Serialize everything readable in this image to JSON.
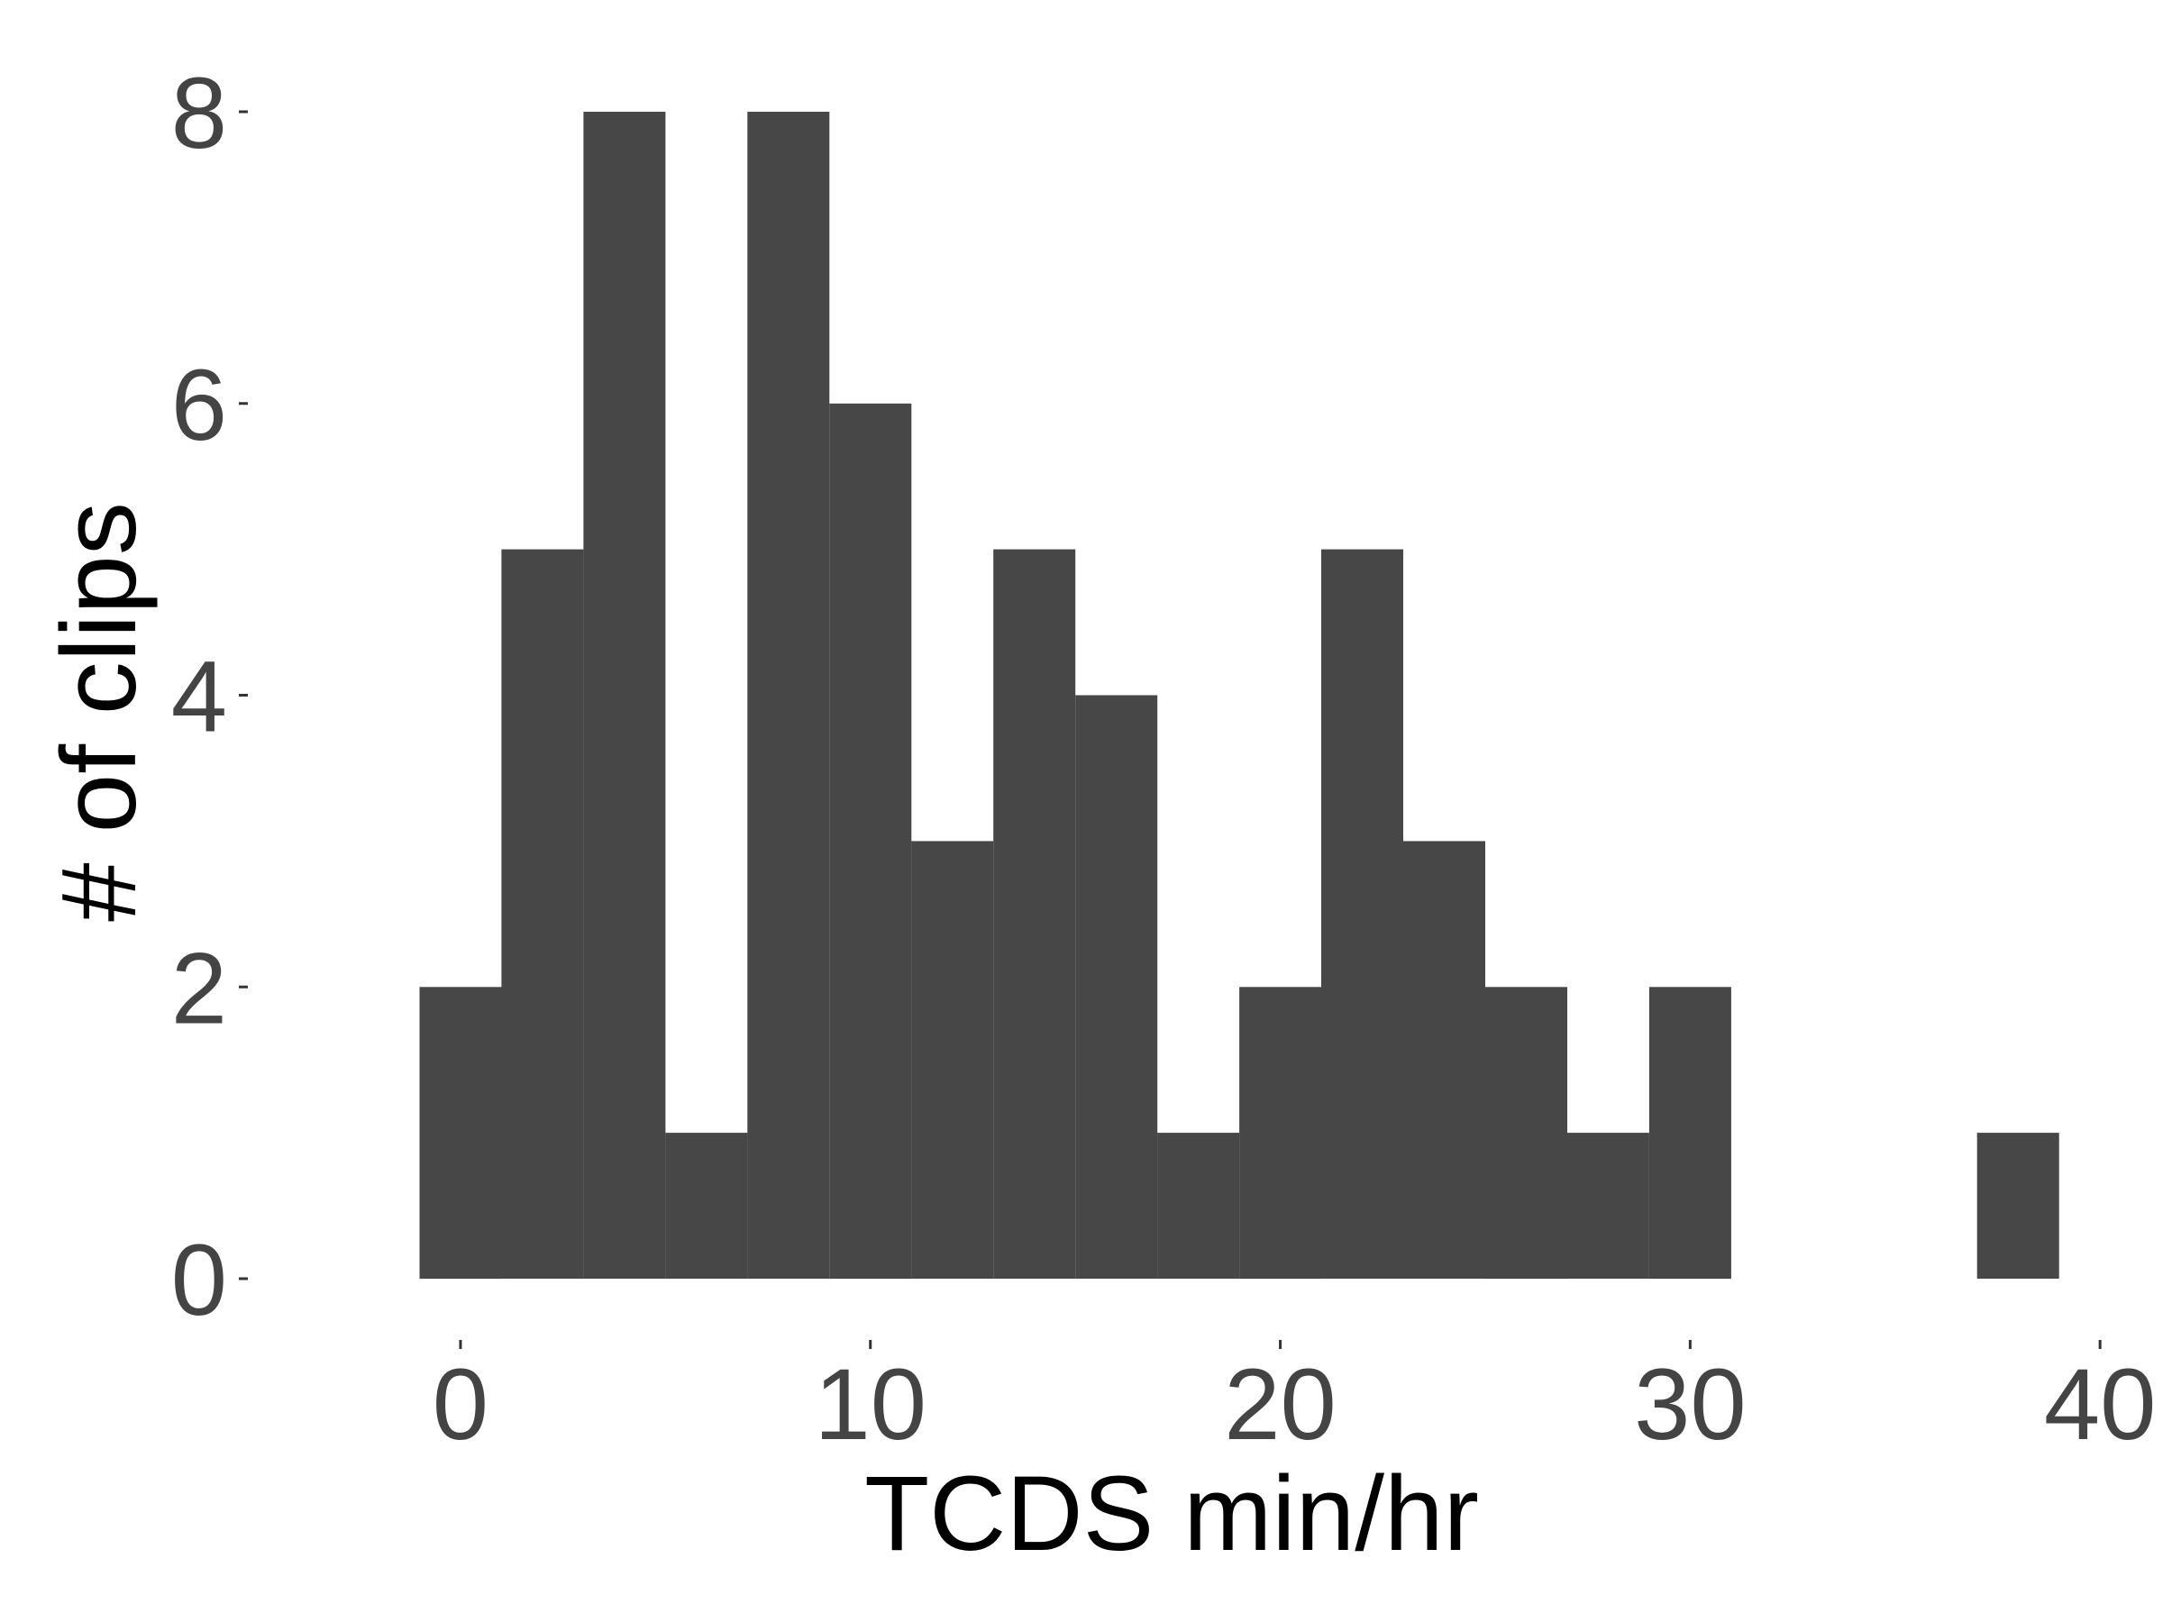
{
  "chart_data": {
    "type": "bar",
    "title": "",
    "xlabel": "TCDS min/hr",
    "ylabel": "# of clips",
    "bin_width": 2,
    "bins": [
      {
        "x0": -1,
        "x1": 1,
        "count": 2
      },
      {
        "x0": 1,
        "x1": 3,
        "count": 5
      },
      {
        "x0": 3,
        "x1": 5,
        "count": 8
      },
      {
        "x0": 5,
        "x1": 7,
        "count": 1
      },
      {
        "x0": 7,
        "x1": 9,
        "count": 8
      },
      {
        "x0": 9,
        "x1": 11,
        "count": 6
      },
      {
        "x0": 11,
        "x1": 13,
        "count": 3
      },
      {
        "x0": 13,
        "x1": 15,
        "count": 5
      },
      {
        "x0": 15,
        "x1": 17,
        "count": 4
      },
      {
        "x0": 17,
        "x1": 19,
        "count": 1
      },
      {
        "x0": 19,
        "x1": 21,
        "count": 2
      },
      {
        "x0": 21,
        "x1": 23,
        "count": 5
      },
      {
        "x0": 23,
        "x1": 25,
        "count": 3
      },
      {
        "x0": 25,
        "x1": 27,
        "count": 2
      },
      {
        "x0": 27,
        "x1": 29,
        "count": 1
      },
      {
        "x0": 29,
        "x1": 31,
        "count": 2
      },
      {
        "x0": 37,
        "x1": 39,
        "count": 1
      }
    ],
    "xlim": [
      -2,
      40.7
    ],
    "ylim": [
      0,
      8
    ],
    "x_ticks": [
      0,
      10,
      20,
      30,
      40
    ],
    "y_ticks": [
      0,
      2,
      4,
      6,
      8
    ],
    "grid": false,
    "legend": "none",
    "bar_color": "#474747"
  }
}
